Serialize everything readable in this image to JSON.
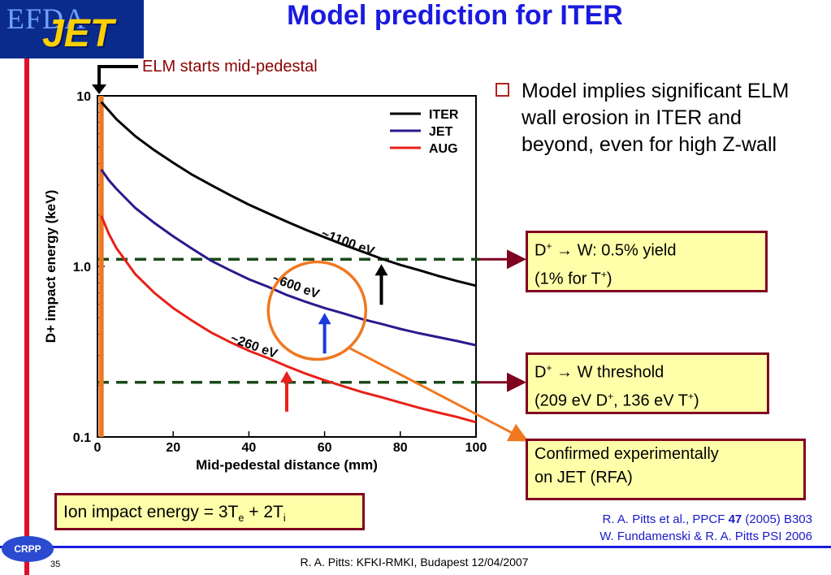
{
  "slide": {
    "title": "Model prediction for ITER",
    "logo_top": "EFDA",
    "logo_main": "JET",
    "elm_label": "ELM starts mid-pedestal",
    "bullet": "Model implies significant ELM wall erosion in ITER and beyond, even for high Z-wall",
    "box1": {
      "line1_a": "D",
      "line1_sup": "+",
      "line1_b": " → W: 0.5% yield",
      "line2_a": "(1% for T",
      "line2_sup": "+",
      "line2_b": ")"
    },
    "box2": {
      "line1_a": "D",
      "line1_sup": "+",
      "line1_b": " → W threshold",
      "line2_a": "(209 eV D",
      "line2_sup1": "+",
      "line2_b": ", 136 eV T",
      "line2_sup2": "+",
      "line2_c": ")"
    },
    "box3": {
      "line1": "Confirmed experimentally",
      "line2": "on JET (RFA)"
    },
    "box4": {
      "a": "Ion impact energy = 3T",
      "sub1": "e",
      "b": " + 2T",
      "sub2": "i"
    },
    "ref1_a": "R. A. Pitts et al., PPCF ",
    "ref1_bold": "47",
    "ref1_b": " (2005) B303",
    "ref2": "W. Fundamenski & R. A. Pitts PSI 2006",
    "footer": "R. A. Pitts: KFKI-RMKI, Budapest 12/04/2007",
    "page_number": "35",
    "crpp": "CRPP",
    "colors": {
      "title": "#1a1ae0",
      "accent_red": "#e0102a",
      "box_fill": "#ffffaa",
      "box_border": "#800020"
    }
  },
  "chart_data": {
    "type": "line",
    "xlabel": "Mid-pedestal distance (mm)",
    "ylabel": "D+ impact energy (keV)",
    "xlim": [
      0,
      100
    ],
    "ylim": [
      0.1,
      10
    ],
    "yscale": "log",
    "xticks": [
      0,
      20,
      40,
      60,
      80,
      100
    ],
    "yticks": [
      {
        "v": 10,
        "label": "10"
      },
      {
        "v": 1,
        "label": "1.0"
      },
      {
        "v": 0.1,
        "label": "0.1"
      }
    ],
    "legend_position": "top-right",
    "series": [
      {
        "name": "ITER",
        "color": "#000000",
        "x": [
          1,
          3,
          5,
          10,
          15,
          20,
          25,
          30,
          35,
          40,
          45,
          50,
          55,
          60,
          65,
          70,
          75,
          80,
          85,
          90,
          95,
          100
        ],
        "y": [
          9.2,
          8.2,
          7.3,
          5.8,
          4.8,
          4.05,
          3.45,
          3.0,
          2.62,
          2.3,
          2.05,
          1.83,
          1.64,
          1.48,
          1.34,
          1.22,
          1.11,
          1.02,
          0.95,
          0.88,
          0.82,
          0.77
        ]
      },
      {
        "name": "JET",
        "color": "#2a1a8c",
        "x": [
          1,
          3,
          5,
          10,
          15,
          20,
          25,
          30,
          35,
          40,
          45,
          50,
          55,
          60,
          65,
          70,
          75,
          80,
          85,
          90,
          95,
          100
        ],
        "y": [
          3.7,
          3.2,
          2.85,
          2.2,
          1.8,
          1.5,
          1.27,
          1.08,
          0.95,
          0.84,
          0.76,
          0.68,
          0.62,
          0.57,
          0.53,
          0.49,
          0.46,
          0.43,
          0.405,
          0.385,
          0.365,
          0.345
        ]
      },
      {
        "name": "AUG",
        "color": "#e8201a",
        "x": [
          1,
          3,
          5,
          10,
          15,
          20,
          25,
          30,
          35,
          40,
          45,
          50,
          55,
          60,
          65,
          70,
          75,
          80,
          85,
          90,
          95,
          100
        ],
        "y": [
          1.98,
          1.55,
          1.28,
          0.9,
          0.7,
          0.57,
          0.48,
          0.41,
          0.36,
          0.32,
          0.29,
          0.26,
          0.235,
          0.215,
          0.198,
          0.183,
          0.171,
          0.159,
          0.148,
          0.139,
          0.131,
          0.122
        ]
      }
    ],
    "hlines": [
      {
        "y": 1.1,
        "color": "#1a4a1a"
      },
      {
        "y": 0.209,
        "color": "#1a4a1a"
      }
    ],
    "vline": {
      "x": 1,
      "color": "#f07820"
    },
    "annotations": [
      {
        "text": "~1100 eV",
        "x": 75,
        "y": 1.1,
        "arrow_color": "#000000"
      },
      {
        "text": "~600 eV",
        "x": 60,
        "y": 0.57,
        "arrow_color": "#1a3ae0"
      },
      {
        "text": "~260 eV",
        "x": 50,
        "y": 0.26,
        "arrow_color": "#e8201a"
      }
    ]
  }
}
